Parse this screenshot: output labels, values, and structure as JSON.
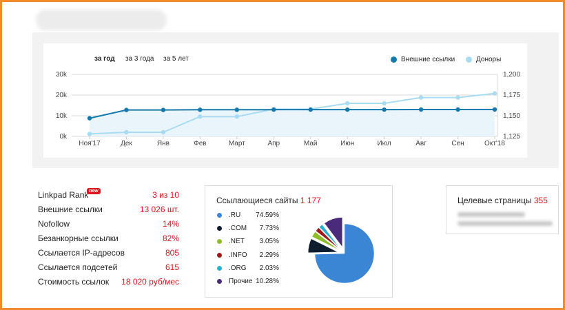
{
  "periods": [
    {
      "label": "за год",
      "active": true
    },
    {
      "label": "за 3 года",
      "active": false
    },
    {
      "label": "за 5 лет",
      "active": false
    }
  ],
  "legend": [
    {
      "label": "Внешние ссылки",
      "color": "#1679ae"
    },
    {
      "label": "Доноры",
      "color": "#a9dcf2"
    }
  ],
  "chart_data": {
    "type": "line",
    "categories": [
      "Ноя'17",
      "Дек",
      "Янв",
      "Фев",
      "Март",
      "Апр",
      "Май",
      "Июн",
      "Июл",
      "Авг",
      "Сен",
      "Окт'18"
    ],
    "left_axis": {
      "ticks": [
        "0k",
        "10k",
        "20k",
        "30k"
      ],
      "range": [
        0,
        30000
      ]
    },
    "right_axis": {
      "ticks": [
        "1,125",
        "1,150",
        "1,175",
        "1,200"
      ],
      "range": [
        1125,
        1200
      ]
    },
    "series": [
      {
        "name": "Внешние ссылки",
        "axis": "left",
        "color": "#1679ae",
        "values": [
          8800,
          12800,
          12800,
          12900,
          12900,
          12950,
          12950,
          12950,
          12950,
          13000,
          13000,
          13026
        ]
      },
      {
        "name": "Доноры",
        "axis": "right",
        "color": "#a9dcf2",
        "values": [
          1128,
          1130,
          1130,
          1149,
          1149,
          1158,
          1158,
          1165,
          1165,
          1172,
          1172,
          1177
        ]
      }
    ],
    "grid": true
  },
  "stats": [
    {
      "label": "Linkpad Rank",
      "value": "3 из 10",
      "badge": "new"
    },
    {
      "label": "Внешние ссылки",
      "value": "13 026 шт."
    },
    {
      "label": "Nofollow",
      "value": "14%"
    },
    {
      "label": "Безанкорные ссылки",
      "value": "82%"
    },
    {
      "label": "Ссылается IP-адресов",
      "value": "805"
    },
    {
      "label": "Ссылается подсетей",
      "value": "615"
    },
    {
      "label": "Стоимость ссылок",
      "value": "18 020 руб/мес"
    }
  ],
  "referring_sites": {
    "title": "Ссылающиеся сайты",
    "count": "1 177",
    "domains": [
      {
        "name": ".RU",
        "percent": "74.59%",
        "value": 74.59,
        "color": "#3a86d4"
      },
      {
        "name": ".COM",
        "percent": "7.73%",
        "value": 7.73,
        "color": "#0f1e2e"
      },
      {
        "name": ".NET",
        "percent": "3.05%",
        "value": 3.05,
        "color": "#8dbd2a"
      },
      {
        "name": ".INFO",
        "percent": "2.29%",
        "value": 2.29,
        "color": "#a01818"
      },
      {
        "name": ".ORG",
        "percent": "2.03%",
        "value": 2.03,
        "color": "#2ab0d0"
      },
      {
        "name": "Прочие",
        "percent": "10.28%",
        "value": 10.28,
        "color": "#4a2a7a"
      }
    ]
  },
  "target_pages": {
    "title": "Целевые страницы",
    "count": "355"
  }
}
